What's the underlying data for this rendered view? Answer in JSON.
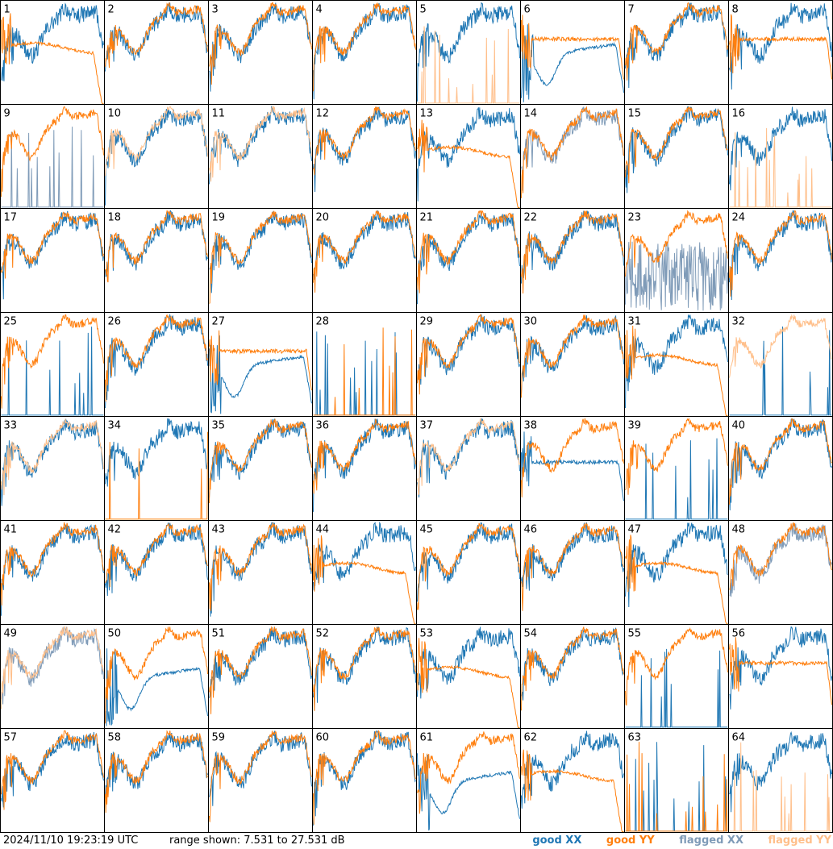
{
  "footer": {
    "timestamp": "2024/11/10 19:23:19 UTC",
    "range_text": "range shown: 7.531 to 27.531 dB"
  },
  "legend": [
    {
      "label": "good XX",
      "color": "#1f77b4"
    },
    {
      "label": "good YY",
      "color": "#ff7f0e"
    },
    {
      "label": "flagged XX",
      "color": "#7f9bb8"
    },
    {
      "label": "flagged YY",
      "color": "#ffbf8a"
    }
  ],
  "chart_data": {
    "type": "line",
    "ylim": [
      7.531,
      27.531
    ],
    "grid": {
      "rows": 8,
      "cols": 8
    },
    "panels": [
      {
        "label": "1",
        "xx": "good",
        "yy": "good",
        "xx_shape": "std",
        "yy_shape": "dropflat"
      },
      {
        "label": "2",
        "xx": "good",
        "yy": "good",
        "xx_shape": "std",
        "yy_shape": "std"
      },
      {
        "label": "3",
        "xx": "good",
        "yy": "good",
        "xx_shape": "std",
        "yy_shape": "std"
      },
      {
        "label": "4",
        "xx": "good",
        "yy": "good",
        "xx_shape": "std",
        "yy_shape": "std"
      },
      {
        "label": "5",
        "xx": "good",
        "yy": "flagged",
        "xx_shape": "std",
        "yy_shape": "spikes"
      },
      {
        "label": "6",
        "xx": "good",
        "yy": "good",
        "xx_shape": "dip",
        "yy_shape": "flat"
      },
      {
        "label": "7",
        "xx": "good",
        "yy": "good",
        "xx_shape": "std",
        "yy_shape": "std"
      },
      {
        "label": "8",
        "xx": "good",
        "yy": "good",
        "xx_shape": "std",
        "yy_shape": "flat"
      },
      {
        "label": "9",
        "xx": "flagged",
        "yy": "good",
        "xx_shape": "spikes",
        "yy_shape": "std"
      },
      {
        "label": "10",
        "xx": "good",
        "yy": "flagged",
        "xx_shape": "std",
        "yy_shape": "std"
      },
      {
        "label": "11",
        "xx": "good",
        "yy": "flagged",
        "xx_shape": "std",
        "yy_shape": "std"
      },
      {
        "label": "12",
        "xx": "good",
        "yy": "good",
        "xx_shape": "std",
        "yy_shape": "std"
      },
      {
        "label": "13",
        "xx": "good",
        "yy": "good",
        "xx_shape": "std",
        "yy_shape": "dropflat"
      },
      {
        "label": "14",
        "xx": "flagged",
        "yy": "good",
        "xx_shape": "std",
        "yy_shape": "std"
      },
      {
        "label": "15",
        "xx": "good",
        "yy": "good",
        "xx_shape": "std",
        "yy_shape": "std"
      },
      {
        "label": "16",
        "xx": "good",
        "yy": "flagged",
        "xx_shape": "std",
        "yy_shape": "spikes"
      },
      {
        "label": "17",
        "xx": "good",
        "yy": "good",
        "xx_shape": "std",
        "yy_shape": "std"
      },
      {
        "label": "18",
        "xx": "good",
        "yy": "good",
        "xx_shape": "std",
        "yy_shape": "std"
      },
      {
        "label": "19",
        "xx": "good",
        "yy": "good",
        "xx_shape": "std",
        "yy_shape": "std"
      },
      {
        "label": "20",
        "xx": "good",
        "yy": "good",
        "xx_shape": "std",
        "yy_shape": "std"
      },
      {
        "label": "21",
        "xx": "good",
        "yy": "good",
        "xx_shape": "std",
        "yy_shape": "std"
      },
      {
        "label": "22",
        "xx": "good",
        "yy": "good",
        "xx_shape": "std",
        "yy_shape": "std"
      },
      {
        "label": "23",
        "xx": "flagged",
        "yy": "good",
        "xx_shape": "noisy",
        "yy_shape": "std"
      },
      {
        "label": "24",
        "xx": "good",
        "yy": "good",
        "xx_shape": "std",
        "yy_shape": "std"
      },
      {
        "label": "25",
        "xx": "good",
        "yy": "good",
        "xx_shape": "spikes",
        "yy_shape": "std"
      },
      {
        "label": "26",
        "xx": "good",
        "yy": "good",
        "xx_shape": "std",
        "yy_shape": "std"
      },
      {
        "label": "27",
        "xx": "good",
        "yy": "good",
        "xx_shape": "dip",
        "yy_shape": "flat"
      },
      {
        "label": "28",
        "xx": "good",
        "yy": "good",
        "xx_shape": "spikes",
        "yy_shape": "spikes"
      },
      {
        "label": "29",
        "xx": "good",
        "yy": "good",
        "xx_shape": "std",
        "yy_shape": "std"
      },
      {
        "label": "30",
        "xx": "good",
        "yy": "good",
        "xx_shape": "std",
        "yy_shape": "std"
      },
      {
        "label": "31",
        "xx": "good",
        "yy": "good",
        "xx_shape": "std",
        "yy_shape": "dropflat"
      },
      {
        "label": "32",
        "xx": "good",
        "yy": "flagged",
        "xx_shape": "spikes",
        "yy_shape": "std"
      },
      {
        "label": "33",
        "xx": "good",
        "yy": "flagged",
        "xx_shape": "std",
        "yy_shape": "std"
      },
      {
        "label": "34",
        "xx": "good",
        "yy": "good",
        "xx_shape": "std",
        "yy_shape": "spikes"
      },
      {
        "label": "35",
        "xx": "good",
        "yy": "good",
        "xx_shape": "std",
        "yy_shape": "std"
      },
      {
        "label": "36",
        "xx": "good",
        "yy": "good",
        "xx_shape": "std",
        "yy_shape": "std"
      },
      {
        "label": "37",
        "xx": "good",
        "yy": "flagged",
        "xx_shape": "std",
        "yy_shape": "std"
      },
      {
        "label": "38",
        "xx": "good",
        "yy": "good",
        "xx_shape": "flat",
        "yy_shape": "std"
      },
      {
        "label": "39",
        "xx": "good",
        "yy": "good",
        "xx_shape": "spikes",
        "yy_shape": "std"
      },
      {
        "label": "40",
        "xx": "good",
        "yy": "good",
        "xx_shape": "std",
        "yy_shape": "std"
      },
      {
        "label": "41",
        "xx": "good",
        "yy": "good",
        "xx_shape": "std",
        "yy_shape": "std"
      },
      {
        "label": "42",
        "xx": "good",
        "yy": "good",
        "xx_shape": "std",
        "yy_shape": "std"
      },
      {
        "label": "43",
        "xx": "good",
        "yy": "good",
        "xx_shape": "std",
        "yy_shape": "std"
      },
      {
        "label": "44",
        "xx": "good",
        "yy": "good",
        "xx_shape": "std",
        "yy_shape": "dropflat"
      },
      {
        "label": "45",
        "xx": "good",
        "yy": "good",
        "xx_shape": "std",
        "yy_shape": "std"
      },
      {
        "label": "46",
        "xx": "good",
        "yy": "good",
        "xx_shape": "std",
        "yy_shape": "std"
      },
      {
        "label": "47",
        "xx": "good",
        "yy": "good",
        "xx_shape": "std",
        "yy_shape": "dropflat"
      },
      {
        "label": "48",
        "xx": "flagged",
        "yy": "good",
        "xx_shape": "std",
        "yy_shape": "std"
      },
      {
        "label": "49",
        "xx": "flagged",
        "yy": "flagged",
        "xx_shape": "std",
        "yy_shape": "std"
      },
      {
        "label": "50",
        "xx": "good",
        "yy": "good",
        "xx_shape": "dip",
        "yy_shape": "std"
      },
      {
        "label": "51",
        "xx": "good",
        "yy": "good",
        "xx_shape": "std",
        "yy_shape": "std"
      },
      {
        "label": "52",
        "xx": "good",
        "yy": "good",
        "xx_shape": "std",
        "yy_shape": "std"
      },
      {
        "label": "53",
        "xx": "good",
        "yy": "good",
        "xx_shape": "std",
        "yy_shape": "dropflat"
      },
      {
        "label": "54",
        "xx": "good",
        "yy": "good",
        "xx_shape": "std",
        "yy_shape": "std"
      },
      {
        "label": "55",
        "xx": "good",
        "yy": "good",
        "xx_shape": "spikes",
        "yy_shape": "std"
      },
      {
        "label": "56",
        "xx": "good",
        "yy": "good",
        "xx_shape": "std",
        "yy_shape": "flat"
      },
      {
        "label": "57",
        "xx": "good",
        "yy": "good",
        "xx_shape": "std",
        "yy_shape": "std"
      },
      {
        "label": "58",
        "xx": "good",
        "yy": "good",
        "xx_shape": "std",
        "yy_shape": "std"
      },
      {
        "label": "59",
        "xx": "good",
        "yy": "good",
        "xx_shape": "std",
        "yy_shape": "std"
      },
      {
        "label": "60",
        "xx": "good",
        "yy": "good",
        "xx_shape": "std",
        "yy_shape": "std"
      },
      {
        "label": "61",
        "xx": "good",
        "yy": "good",
        "xx_shape": "dip",
        "yy_shape": "std"
      },
      {
        "label": "62",
        "xx": "good",
        "yy": "good",
        "xx_shape": "std",
        "yy_shape": "dropflat"
      },
      {
        "label": "63",
        "xx": "good",
        "yy": "good",
        "xx_shape": "spikes",
        "yy_shape": "spikes"
      },
      {
        "label": "64",
        "xx": "good",
        "yy": "flagged",
        "xx_shape": "std",
        "yy_shape": "spikes"
      }
    ]
  }
}
